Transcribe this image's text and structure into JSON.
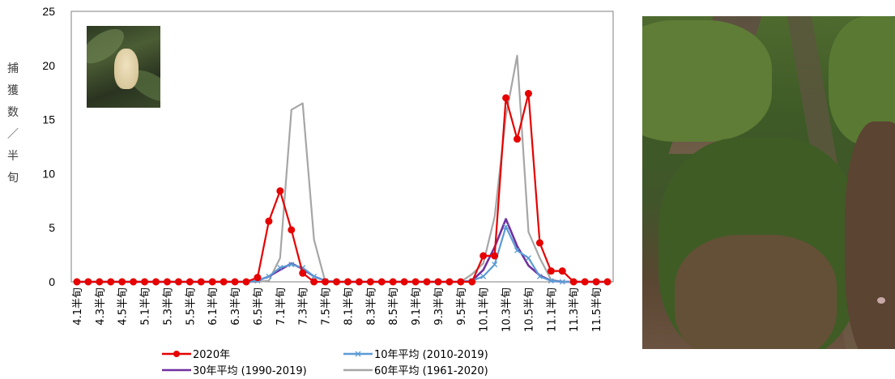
{
  "chart_data": {
    "type": "line",
    "ylabel_chars": [
      "捕",
      "獲",
      "数",
      "／",
      "半",
      "旬"
    ],
    "ylim": [
      0,
      25
    ],
    "yticks": [
      0,
      5,
      10,
      15,
      20,
      25
    ],
    "categories": [
      "4.1半旬",
      "4.2半旬",
      "4.3半旬",
      "4.4半旬",
      "4.5半旬",
      "4.6半旬",
      "5.1半旬",
      "5.2半旬",
      "5.3半旬",
      "5.4半旬",
      "5.5半旬",
      "5.6半旬",
      "6.1半旬",
      "6.2半旬",
      "6.3半旬",
      "6.4半旬",
      "6.5半旬",
      "6.6半旬",
      "7.1半旬",
      "7.2半旬",
      "7.3半旬",
      "7.4半旬",
      "7.5半旬",
      "7.6半旬",
      "8.1半旬",
      "8.2半旬",
      "8.3半旬",
      "8.4半旬",
      "8.5半旬",
      "8.6半旬",
      "9.1半旬",
      "9.2半旬",
      "9.3半旬",
      "9.4半旬",
      "9.5半旬",
      "9.6半旬",
      "10.1半旬",
      "10.2半旬",
      "10.3半旬",
      "10.4半旬",
      "10.5半旬",
      "10.6半旬",
      "11.1半旬",
      "11.2半旬",
      "11.3半旬",
      "11.4半旬",
      "11.5半旬",
      "11.6半旬"
    ],
    "tick_labels": [
      "4.1半旬",
      "4.3半旬",
      "4.5半旬",
      "5.1半旬",
      "5.3半旬",
      "5.5半旬",
      "6.1半旬",
      "6.3半旬",
      "6.5半旬",
      "7.1半旬",
      "7.3半旬",
      "7.5半旬",
      "8.1半旬",
      "8.3半旬",
      "8.5半旬",
      "9.1半旬",
      "9.3半旬",
      "9.5半旬",
      "10.1半旬",
      "10.3半旬",
      "10.5半旬",
      "11.1半旬",
      "11.3半旬",
      "11.5半旬"
    ],
    "series": [
      {
        "name": "2020年",
        "color": "#e60000",
        "marker": "circle",
        "values": [
          0,
          0,
          0,
          0,
          0,
          0,
          0,
          0,
          0,
          0,
          0,
          0,
          0,
          0,
          0,
          0,
          0.4,
          5.6,
          8.4,
          4.8,
          0.8,
          0,
          0,
          0,
          0,
          0,
          0,
          0,
          0,
          0,
          0,
          0,
          0,
          0,
          0,
          0,
          2.4,
          2.4,
          17,
          13.2,
          17.4,
          3.6,
          1,
          1,
          0,
          0,
          0,
          0
        ]
      },
      {
        "name": "10年平均 (2010-2019)",
        "color": "#5b9bd5",
        "marker": "x",
        "values": [
          0,
          0,
          0,
          0,
          0,
          0,
          0,
          0,
          0,
          0,
          0,
          0,
          0,
          0,
          0,
          0,
          0.1,
          0.5,
          1.3,
          1.6,
          1.3,
          0.5,
          0.1,
          0,
          0,
          0,
          0,
          0,
          0,
          0,
          0,
          0,
          0,
          0,
          0,
          0.1,
          0.5,
          1.6,
          5.1,
          2.9,
          2.2,
          0.5,
          0.1,
          0,
          0,
          0,
          0,
          0
        ]
      },
      {
        "name": "30年平均 (1990-2019)",
        "color": "#7030a0",
        "marker": "none",
        "values": [
          0,
          0,
          0,
          0,
          0,
          0,
          0,
          0,
          0,
          0,
          0,
          0,
          0,
          0,
          0,
          0,
          0.1,
          0.5,
          1.1,
          1.7,
          1.2,
          0.5,
          0.1,
          0,
          0,
          0,
          0,
          0,
          0,
          0,
          0,
          0,
          0,
          0,
          0,
          0.1,
          1.1,
          3.2,
          5.8,
          3.3,
          1.5,
          0.6,
          0.1,
          0,
          0,
          0,
          0,
          0
        ]
      },
      {
        "name": "60年平均 (1961-2020)",
        "color": "#a6a6a6",
        "marker": "none",
        "values": [
          0,
          0,
          0,
          0,
          0,
          0,
          0,
          0,
          0,
          0,
          0,
          0,
          0,
          0,
          0,
          0,
          0,
          0.1,
          2.2,
          15.9,
          16.5,
          3.9,
          0,
          0,
          0,
          0,
          0,
          0,
          0,
          0,
          0,
          0,
          0,
          0,
          0,
          0.7,
          1.7,
          6,
          15.3,
          20.9,
          4.6,
          2.2,
          0.2,
          0,
          0,
          0,
          0,
          0
        ]
      }
    ],
    "legend_position": "bottom",
    "grid": false
  },
  "images": {
    "inset": "moth-photo",
    "side": "tea-field-photo"
  }
}
